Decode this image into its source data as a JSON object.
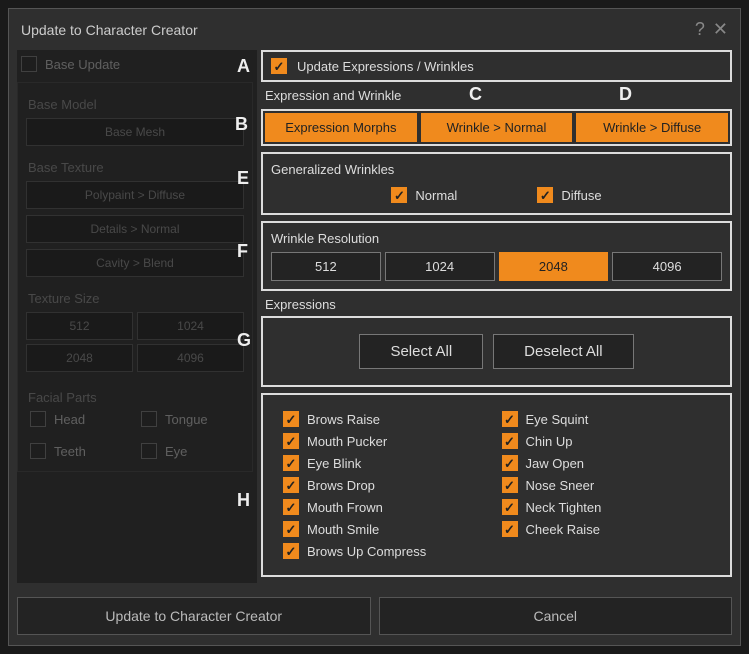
{
  "window": {
    "title": "Update to Character Creator"
  },
  "left": {
    "base_update": {
      "label": "Base Update",
      "checked": false
    },
    "base_model": {
      "title": "Base Model",
      "mesh": "Base Mesh"
    },
    "base_texture": {
      "title": "Base Texture",
      "items": [
        "Polypaint > Diffuse",
        "Details > Normal",
        "Cavity > Blend"
      ]
    },
    "texture_size": {
      "title": "Texture Size",
      "options": [
        "512",
        "1024",
        "2048",
        "4096"
      ]
    },
    "facial_parts": {
      "title": "Facial Parts",
      "items": [
        {
          "label": "Head",
          "checked": false
        },
        {
          "label": "Tongue",
          "checked": false
        },
        {
          "label": "Teeth",
          "checked": false
        },
        {
          "label": "Eye",
          "checked": false
        }
      ]
    }
  },
  "right": {
    "update_expr": {
      "label": "Update Expressions / Wrinkles",
      "checked": true
    },
    "expr_wrinkle": {
      "title": "Expression and Wrinkle",
      "tabs": [
        {
          "label": "Expression Morphs",
          "active": true
        },
        {
          "label": "Wrinkle > Normal",
          "active": true
        },
        {
          "label": "Wrinkle > Diffuse",
          "active": true
        }
      ]
    },
    "gen_wrinkles": {
      "title": "Generalized Wrinkles",
      "normal": {
        "label": "Normal",
        "checked": true
      },
      "diffuse": {
        "label": "Diffuse",
        "checked": true
      }
    },
    "wrinkle_res": {
      "title": "Wrinkle Resolution",
      "options": [
        "512",
        "1024",
        "2048",
        "4096"
      ],
      "selected": "2048"
    },
    "expressions": {
      "title": "Expressions",
      "select_all": "Select All",
      "deselect_all": "Deselect All",
      "left_items": [
        {
          "label": "Brows Raise",
          "checked": true
        },
        {
          "label": "Mouth Pucker",
          "checked": true
        },
        {
          "label": "Eye Blink",
          "checked": true
        },
        {
          "label": "Brows Drop",
          "checked": true
        },
        {
          "label": "Mouth Frown",
          "checked": true
        },
        {
          "label": "Mouth Smile",
          "checked": true
        },
        {
          "label": "Brows Up Compress",
          "checked": true
        }
      ],
      "right_items": [
        {
          "label": "Eye Squint",
          "checked": true
        },
        {
          "label": "Chin Up",
          "checked": true
        },
        {
          "label": "Jaw Open",
          "checked": true
        },
        {
          "label": "Nose Sneer",
          "checked": true
        },
        {
          "label": "Neck Tighten",
          "checked": true
        },
        {
          "label": "Cheek Raise",
          "checked": true
        }
      ]
    }
  },
  "letters": {
    "A": "A",
    "B": "B",
    "C": "C",
    "D": "D",
    "E": "E",
    "F": "F",
    "G": "G",
    "H": "H"
  },
  "footer": {
    "ok": "Update to Character Creator",
    "cancel": "Cancel"
  }
}
